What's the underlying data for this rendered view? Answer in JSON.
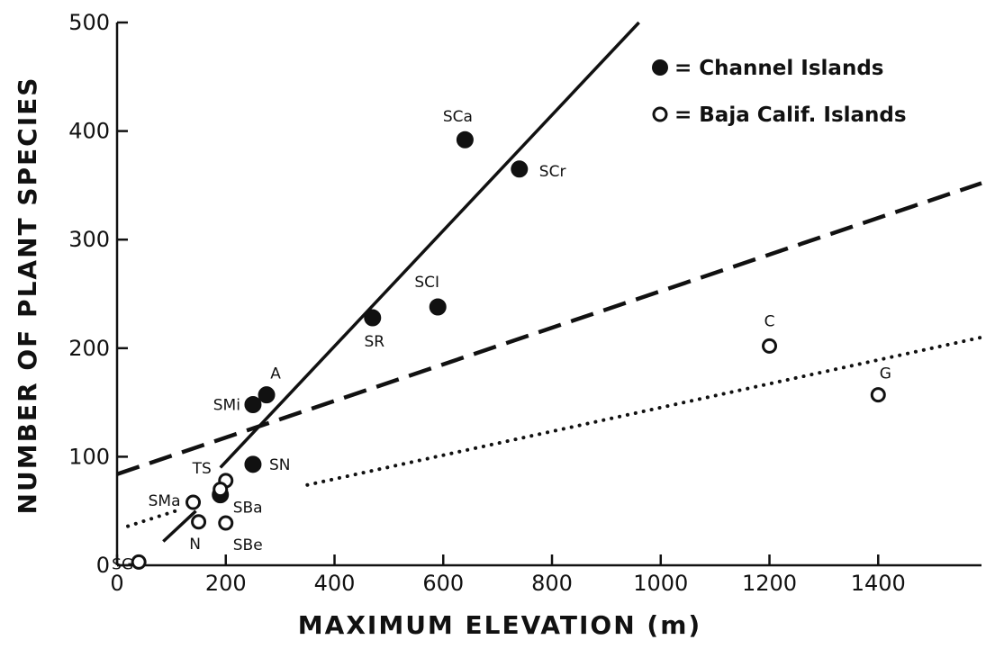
{
  "chart_data": {
    "type": "scatter",
    "xlabel": "MAXIMUM ELEVATION (m)",
    "ylabel": "NUMBER OF PLANT SPECIES",
    "xlim": [
      0,
      1590
    ],
    "ylim": [
      0,
      500
    ],
    "x_ticks": [
      {
        "value": 0,
        "label": "0"
      },
      {
        "value": 200,
        "label": "200"
      },
      {
        "value": 400,
        "label": "400"
      },
      {
        "value": 600,
        "label": "600"
      },
      {
        "value": 800,
        "label": "800"
      },
      {
        "value": 1000,
        "label": "1000"
      },
      {
        "value": 1200,
        "label": "1200"
      },
      {
        "value": 1400,
        "label": "1400"
      }
    ],
    "y_ticks": [
      {
        "value": 0,
        "label": "0"
      },
      {
        "value": 100,
        "label": "100"
      },
      {
        "value": 200,
        "label": "200"
      },
      {
        "value": 300,
        "label": "300"
      },
      {
        "value": 400,
        "label": "400"
      },
      {
        "value": 500,
        "label": "500"
      }
    ],
    "grid": false,
    "legend_position": "top-right",
    "series": [
      {
        "name": "Channel Islands",
        "legend_label": "= Channel Islands",
        "marker": "filled-circle",
        "points": [
          {
            "label": "SCa",
            "x": 640,
            "y": 392
          },
          {
            "label": "SCr",
            "x": 740,
            "y": 365
          },
          {
            "label": "SCI",
            "x": 590,
            "y": 238
          },
          {
            "label": "SR",
            "x": 470,
            "y": 228
          },
          {
            "label": "A",
            "x": 275,
            "y": 157
          },
          {
            "label": "SMi",
            "x": 250,
            "y": 148
          },
          {
            "label": "SN",
            "x": 250,
            "y": 93
          },
          {
            "label": "SBa",
            "x": 190,
            "y": 65
          }
        ]
      },
      {
        "name": "Baja Calif. Islands",
        "legend_label": "= Baja Calif. Islands",
        "marker": "open-circle",
        "points": [
          {
            "label": "C",
            "x": 1200,
            "y": 202
          },
          {
            "label": "G",
            "x": 1400,
            "y": 157
          },
          {
            "label": "TS",
            "x": 200,
            "y": 78
          },
          {
            "label": "",
            "x": 190,
            "y": 70
          },
          {
            "label": "SMa",
            "x": 140,
            "y": 58
          },
          {
            "label": "N",
            "x": 150,
            "y": 40
          },
          {
            "label": "SBe",
            "x": 200,
            "y": 39
          },
          {
            "label": "SG",
            "x": 40,
            "y": 3
          }
        ]
      }
    ],
    "lines": [
      {
        "style": "solid",
        "segments": [
          [
            [
              190,
              90
            ],
            [
              960,
              500
            ]
          ]
        ]
      },
      {
        "style": "solid",
        "segments": [
          [
            [
              145,
              50
            ],
            [
              85,
              22
            ]
          ]
        ]
      },
      {
        "style": "dashed",
        "segments": [
          [
            [
              0,
              84
            ],
            [
              1590,
              352
            ]
          ]
        ]
      },
      {
        "style": "dotted",
        "segments": [
          [
            [
              20,
              36
            ],
            [
              120,
              52
            ]
          ],
          [
            [
              350,
              74
            ],
            [
              1590,
              210
            ]
          ]
        ]
      }
    ]
  }
}
